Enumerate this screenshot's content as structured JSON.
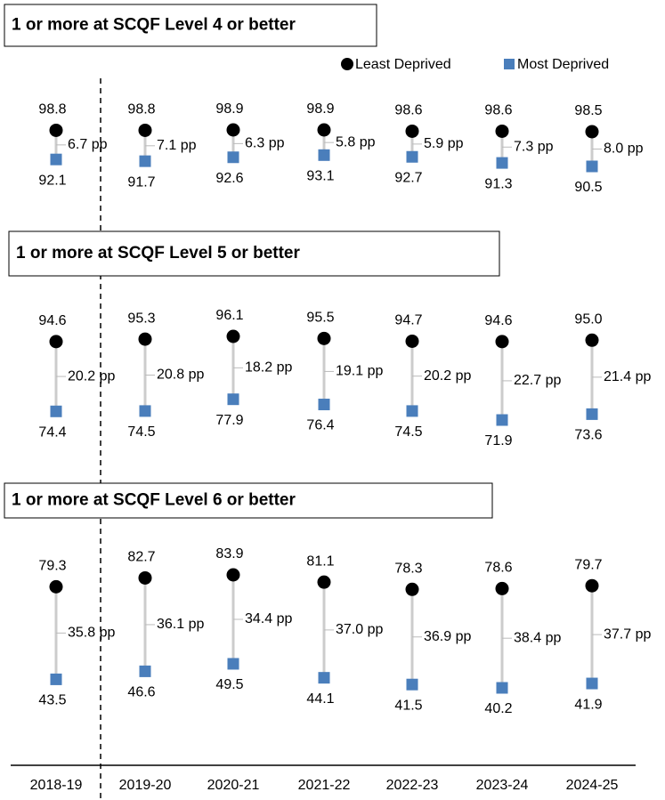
{
  "chart_data": {
    "type": "dumbbell",
    "categories": [
      "2018-19",
      "2019-20",
      "2020-21",
      "2021-22",
      "2022-23",
      "2023-24",
      "2024-25"
    ],
    "series": [
      {
        "name": "Least Deprived",
        "color": "#000000",
        "marker": "circle"
      },
      {
        "name": "Most Deprived",
        "color": "#4a7ebb",
        "marker": "square"
      }
    ],
    "panels": [
      {
        "title": "1 or more at SCQF Level 4 or better",
        "series": [
          {
            "values": [
              98.8,
              98.8,
              98.9,
              98.9,
              98.6,
              98.6,
              98.5
            ]
          },
          {
            "values": [
              92.1,
              91.7,
              92.6,
              93.1,
              92.7,
              91.3,
              90.5
            ]
          }
        ],
        "gaps": {
          "values": [
            6.7,
            7.1,
            6.3,
            5.8,
            5.9,
            7.3,
            8.0
          ],
          "value_labels": [
            "6.7 pp",
            "7.1 pp",
            "6.3 pp",
            "5.8 pp",
            "5.9 pp",
            "7.3 pp",
            "8.0 pp"
          ]
        }
      },
      {
        "title": "1 or more at SCQF Level 5 or better",
        "series": [
          {
            "values": [
              94.6,
              95.3,
              96.1,
              95.5,
              94.7,
              94.6,
              95.0
            ],
            "value_labels": [
              "94.6",
              "95.3",
              "96.1",
              "95.5",
              "94.7",
              "94.6",
              "95.0"
            ]
          },
          {
            "values": [
              74.4,
              74.5,
              77.9,
              76.4,
              74.5,
              71.9,
              73.6
            ]
          }
        ],
        "gaps": {
          "values": [
            20.2,
            20.8,
            18.2,
            19.1,
            20.2,
            22.7,
            21.4
          ],
          "value_labels": [
            "20.2 pp",
            "20.8 pp",
            "18.2 pp",
            "19.1 pp",
            "20.2 pp",
            "22.7 pp",
            "21.4 pp"
          ]
        }
      },
      {
        "title": "1 or more at SCQF Level 6 or better",
        "series": [
          {
            "values": [
              79.3,
              82.7,
              83.9,
              81.1,
              78.3,
              78.6,
              79.7
            ]
          },
          {
            "values": [
              43.5,
              46.6,
              49.5,
              44.1,
              41.5,
              40.2,
              41.9
            ]
          }
        ],
        "gaps": {
          "values": [
            35.8,
            36.1,
            34.4,
            37.0,
            36.9,
            38.4,
            37.7
          ],
          "value_labels": [
            "35.8 pp",
            "36.1 pp",
            "34.4 pp",
            "37.0 pp",
            "36.9 pp",
            "38.4 pp",
            "37.7 pp"
          ]
        }
      }
    ]
  }
}
